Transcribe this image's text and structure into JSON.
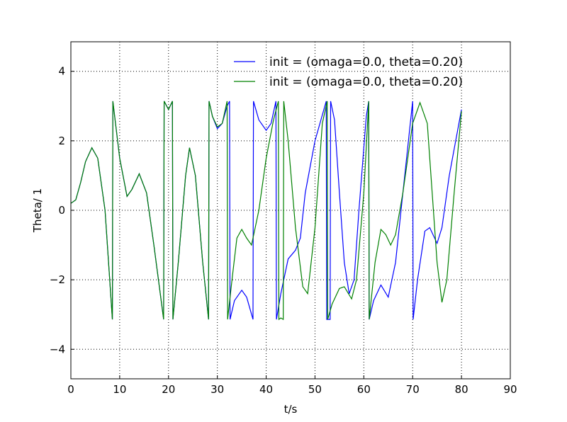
{
  "chart_data": {
    "type": "line",
    "xlabel": "t/s",
    "ylabel": "Theta/ 1",
    "xlim": [
      0,
      90
    ],
    "ylim": [
      -4.85,
      4.85
    ],
    "xticks": [
      0,
      10,
      20,
      30,
      40,
      50,
      60,
      70,
      80,
      90
    ],
    "yticks": [
      {
        "value": -4,
        "label": "−4"
      },
      {
        "value": -2,
        "label": "−2"
      },
      0,
      2,
      4
    ],
    "grid": true,
    "legend": "upper right",
    "series": [
      {
        "name": "init = (omaga=0.0, theta=0.20)",
        "color": "#0000ff",
        "x": [
          0,
          1,
          2,
          3,
          4.3,
          5.5,
          7,
          8.5,
          8.6,
          10,
          11.5,
          12.5,
          14,
          15.5,
          17,
          19,
          19.1,
          20,
          20.8,
          20.9,
          22,
          23.5,
          24.3,
          25.5,
          27,
          28.2,
          28.3,
          29,
          30,
          31,
          32,
          32.5,
          32.6,
          33.5,
          35,
          36,
          37.3,
          37.4,
          38.5,
          40,
          41,
          42,
          42.1,
          43,
          44.5,
          46,
          47,
          48,
          50,
          52.3,
          52.4,
          53.1,
          53.2,
          54,
          55,
          56,
          57,
          58,
          59,
          60.5,
          61,
          61.1,
          62,
          63.5,
          65,
          66.5,
          68,
          70,
          70.1,
          71,
          72.5,
          73.5,
          75,
          76,
          77.5,
          80
        ],
        "values": [
          0.2,
          0.3,
          0.8,
          1.4,
          1.8,
          1.5,
          0,
          -3.14,
          3.14,
          1.5,
          0.4,
          0.6,
          1.05,
          0.5,
          -1,
          -3.14,
          3.14,
          2.9,
          3.14,
          -3.14,
          -1.5,
          1.0,
          1.8,
          1.0,
          -1.5,
          -3.14,
          3.14,
          2.7,
          2.35,
          2.5,
          3.0,
          3.14,
          -3.14,
          -2.6,
          -2.3,
          -2.5,
          -3.14,
          3.14,
          2.6,
          2.3,
          2.5,
          3.14,
          -3.14,
          -2.4,
          -1.4,
          -1.15,
          -0.8,
          0.5,
          2.0,
          3.14,
          -3.14,
          -3.14,
          3.14,
          2.6,
          0.5,
          -1.5,
          -2.4,
          -2.0,
          0,
          2.7,
          3.14,
          -3.14,
          -2.6,
          -2.15,
          -2.5,
          -1.5,
          0.5,
          3.14,
          -3.14,
          -2.0,
          -0.6,
          -0.5,
          -0.95,
          -0.5,
          1.0,
          2.9
        ]
      },
      {
        "name": "init = (omaga=0.0, theta=0.20)",
        "color": "#008000",
        "x": [
          0,
          1,
          2,
          3,
          4.3,
          5.5,
          7,
          8.5,
          8.6,
          10,
          11.5,
          12.5,
          14,
          15.5,
          17,
          19,
          19.1,
          20,
          20.8,
          20.9,
          22,
          23.5,
          24.3,
          25.5,
          27,
          28.2,
          28.3,
          29,
          30,
          31,
          32,
          32.1,
          33,
          34,
          35,
          36,
          37,
          38.5,
          40,
          41.5,
          42.5,
          42.6,
          43,
          43.5,
          43.6,
          44.5,
          46,
          47.5,
          48.5,
          50,
          51.5,
          52.5,
          52.6,
          53.5,
          55,
          56,
          57.5,
          58.5,
          60,
          61,
          61.1,
          62.3,
          63.5,
          64.5,
          65.5,
          66.5,
          68,
          70,
          71.5,
          73,
          74,
          75,
          76,
          77,
          78.5,
          80
        ],
        "values": [
          0.2,
          0.3,
          0.8,
          1.4,
          1.8,
          1.5,
          0,
          -3.14,
          3.14,
          1.5,
          0.4,
          0.6,
          1.05,
          0.5,
          -1,
          -3.14,
          3.14,
          2.9,
          3.14,
          -3.14,
          -1.5,
          1.0,
          1.8,
          1.0,
          -1.5,
          -3.14,
          3.14,
          2.7,
          2.4,
          2.5,
          3.14,
          -3.14,
          -2.0,
          -0.8,
          -0.55,
          -0.8,
          -1.0,
          0,
          1.5,
          2.6,
          3.14,
          -3.14,
          -3.1,
          -3.14,
          3.14,
          2.0,
          -0.5,
          -2.2,
          -2.4,
          -0.5,
          2.5,
          3.14,
          -3.14,
          -2.7,
          -2.25,
          -2.2,
          -2.55,
          -2.0,
          0.5,
          3.14,
          -3.14,
          -1.5,
          -0.55,
          -0.7,
          -1.0,
          -0.7,
          0.5,
          2.5,
          3.1,
          2.5,
          0.5,
          -1.5,
          -2.65,
          -2.0,
          0.5,
          2.85
        ]
      }
    ]
  }
}
